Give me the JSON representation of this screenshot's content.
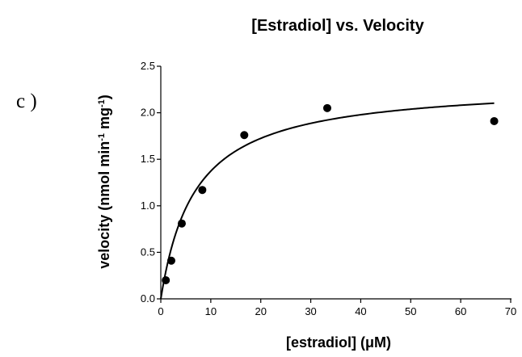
{
  "panel_label": "c )",
  "chart_data": {
    "type": "scatter",
    "title": "[Estradiol] vs. Velocity",
    "xlabel": "[estradiol] (μM)",
    "ylabel_main": "velocity (nmol min",
    "ylabel_sup1": "-1",
    "ylabel_mid": " mg",
    "ylabel_sup2": "-1",
    "ylabel_end": ")",
    "xlim": [
      0,
      70
    ],
    "ylim": [
      0,
      2.5
    ],
    "x_ticks": [
      0,
      10,
      20,
      30,
      40,
      50,
      60,
      70
    ],
    "y_ticks": [
      "0.0",
      "0.5",
      "1.0",
      "1.5",
      "2.0",
      "2.5"
    ],
    "grid": false,
    "points": [
      {
        "x": 1.0,
        "y": 0.2
      },
      {
        "x": 2.1,
        "y": 0.41
      },
      {
        "x": 4.2,
        "y": 0.81
      },
      {
        "x": 8.3,
        "y": 1.17
      },
      {
        "x": 16.7,
        "y": 1.76
      },
      {
        "x": 33.3,
        "y": 2.05
      },
      {
        "x": 66.7,
        "y": 1.91
      }
    ],
    "fit": {
      "model": "Michaelis-Menten",
      "Vmax": 2.32,
      "Km": 6.9,
      "x_range": [
        0,
        66.7
      ]
    },
    "colors": {
      "points": "#000000",
      "line": "#000000"
    }
  }
}
